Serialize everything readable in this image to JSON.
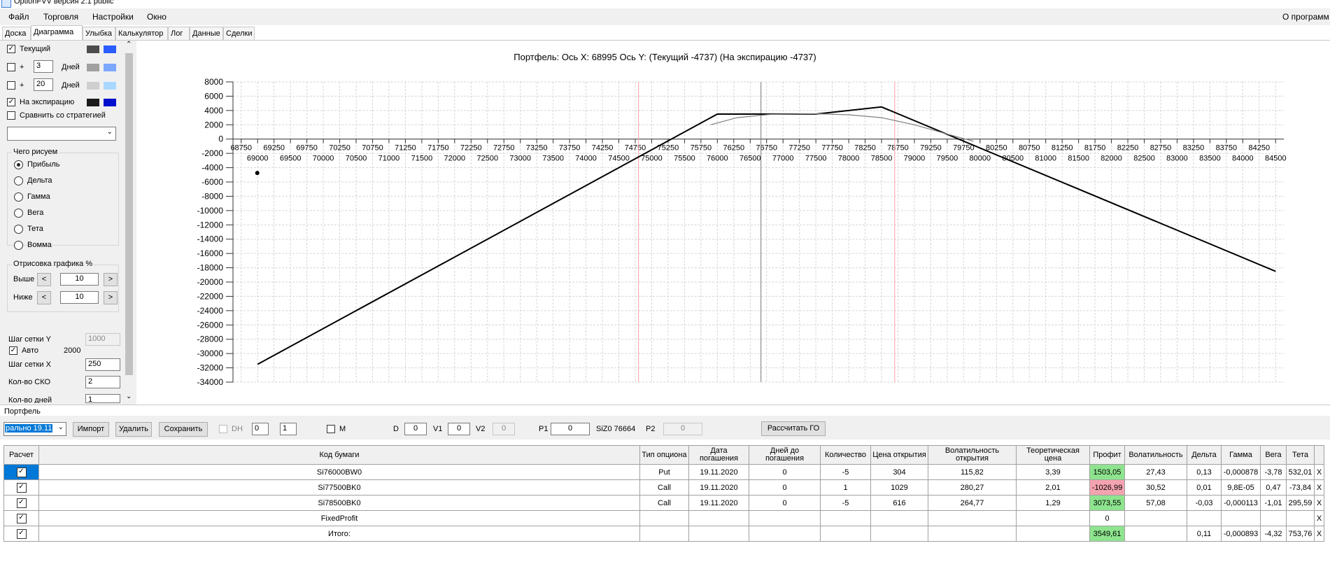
{
  "window": {
    "title": "OptionFVV версия 2.1 public"
  },
  "menu": {
    "items": [
      "Файл",
      "Торговля",
      "Настройки",
      "Окно"
    ],
    "right": "О программ"
  },
  "tabs": [
    "Доска",
    "Диаграмма",
    "Улыбка",
    "Калькулятор",
    "Лог",
    "Данные",
    "Сделки"
  ],
  "left": {
    "current_label": "Текущий",
    "plus": "+",
    "days_label": "Дней",
    "days1": "3",
    "days2": "20",
    "expiry_label": "На экспирацию",
    "compare_label": "Сравнить со стратегией",
    "what_group": "Чего рисуем",
    "radio": [
      "Прибыль",
      "Дельта",
      "Гамма",
      "Вега",
      "Тета",
      "Вомма"
    ],
    "draw_group": "Отрисовка графика %",
    "above_label": "Выше",
    "below_label": "Ниже",
    "above_val": "10",
    "below_val": "10",
    "step_btn_left": "<",
    "step_btn_right": ">",
    "grid_y_label": "Шаг сетки Y",
    "grid_y_val": "1000",
    "auto_label": "Авто",
    "auto_val": "2000",
    "grid_x_label": "Шаг сетки X",
    "grid_x_val": "250",
    "sko_label": "Кол-во СКО",
    "sko_val": "2",
    "days_count_label": "Кол-во дней",
    "days_count_val": "1"
  },
  "chart_title": "Портфель: Ось X: 68995 Ось Y:  (Текущий -4737)  (На экспирацию -4737)",
  "chart_data": {
    "type": "line",
    "x_ticks_top": [
      "68750",
      "69250",
      "69750",
      "70250",
      "70750",
      "71250",
      "71750",
      "72250",
      "72750",
      "73250",
      "73750",
      "74250",
      "74750",
      "75250",
      "75750",
      "76250",
      "76750",
      "77250",
      "77750",
      "78250",
      "78750",
      "79250",
      "79750",
      "80250",
      "80750",
      "81250",
      "81750",
      "82250",
      "82750",
      "83250",
      "83750",
      "84250"
    ],
    "x_ticks_bottom": [
      "69000",
      "69500",
      "70000",
      "70500",
      "71000",
      "71500",
      "72000",
      "72500",
      "73000",
      "73500",
      "74000",
      "74500",
      "75000",
      "75500",
      "76000",
      "76500",
      "77000",
      "77500",
      "78000",
      "78500",
      "79000",
      "79500",
      "80000",
      "80500",
      "81000",
      "81500",
      "82000",
      "82500",
      "83000",
      "83500",
      "84000",
      "84500"
    ],
    "y_ticks": [
      "8000",
      "6000",
      "4000",
      "2000",
      "0",
      "-2000",
      "-4000",
      "-6000",
      "-8000",
      "-10000",
      "-12000",
      "-14000",
      "-16000",
      "-18000",
      "-20000",
      "-22000",
      "-24000",
      "-26000",
      "-28000",
      "-30000",
      "-32000",
      "-34000"
    ],
    "xlim": [
      68625,
      84625
    ],
    "ylim": [
      -34000,
      8000
    ],
    "series": [
      {
        "style": "expiry",
        "color": "#000000",
        "x": [
          69000,
          76000,
          77500,
          78500,
          84500
        ],
        "y": [
          -31500,
          3500,
          3500,
          4500,
          -18500
        ]
      },
      {
        "style": "current",
        "color": "#808080",
        "x": [
          75900,
          76300,
          76800,
          77500,
          78000,
          78500,
          79000,
          79500,
          79900
        ],
        "y": [
          2000,
          3000,
          3450,
          3550,
          3400,
          3000,
          2000,
          700,
          -300
        ]
      }
    ],
    "vlines": [
      {
        "x": 74800,
        "color": "#ff9aa8"
      },
      {
        "x": 76664,
        "color": "#777777"
      },
      {
        "x": 78700,
        "color": "#ff9aa8"
      }
    ],
    "marker": {
      "x": 68995,
      "y": -4737
    },
    "grid": true
  },
  "portfolio": {
    "label": "Портфель",
    "select_value": "рально 19.11",
    "import_btn": "Импорт",
    "delete_btn": "Удалить",
    "save_btn": "Сохранить",
    "dh_label": "DH",
    "spin1": "0",
    "spin2": "1",
    "m_label": "M",
    "d_label": "D",
    "d_val": "0",
    "v1_label": "V1",
    "v1_val": "0",
    "v2_label": "V2",
    "v2_val": "0",
    "p1_label": "P1",
    "p1_val": "0",
    "si_label": "SiZ0 76664",
    "p2_label": "P2",
    "p2_val": "0",
    "go_btn": "Рассчитать ГО"
  },
  "table": {
    "headers": [
      "Расчет",
      "Код бумаги",
      "Тип опциона",
      "Дата погашения",
      "Дней до погашения",
      "Количество",
      "Цена открытия",
      "Волатильность открытия",
      "Теоретическая цена",
      "Профит",
      "Волатильность",
      "Дельта",
      "Гамма",
      "Вега",
      "Тета"
    ],
    "rows": [
      [
        "✓",
        "Si76000BW0",
        "Put",
        "19.11.2020",
        "0",
        "-5",
        "304",
        "115,82",
        "3,39",
        "1503,05",
        "27,43",
        "0,13",
        "-0,000878",
        "-3,78",
        "532,01"
      ],
      [
        "✓",
        "Si77500BK0",
        "Call",
        "19.11.2020",
        "0",
        "1",
        "1029",
        "280,27",
        "2,01",
        "-1026,99",
        "30,52",
        "0,01",
        "9,8E-05",
        "0,47",
        "-73,84"
      ],
      [
        "✓",
        "Si78500BK0",
        "Call",
        "19.11.2020",
        "0",
        "-5",
        "616",
        "264,77",
        "1,29",
        "3073,55",
        "57,08",
        "-0,03",
        "-0,000113",
        "-1,01",
        "295,59"
      ],
      [
        "✓",
        "FixedProfit",
        "",
        "",
        "",
        "",
        "",
        "",
        "",
        "0",
        "",
        "",
        "",
        "",
        ""
      ],
      [
        "✓",
        "Итого:",
        "",
        "",
        "",
        "",
        "",
        "",
        "",
        "3549,61",
        "",
        "0,11",
        "-0,000893",
        "-4,32",
        "753,76"
      ]
    ],
    "profit_colors": [
      "green",
      "pink",
      "green",
      "",
      "green"
    ],
    "row_close": "X"
  }
}
